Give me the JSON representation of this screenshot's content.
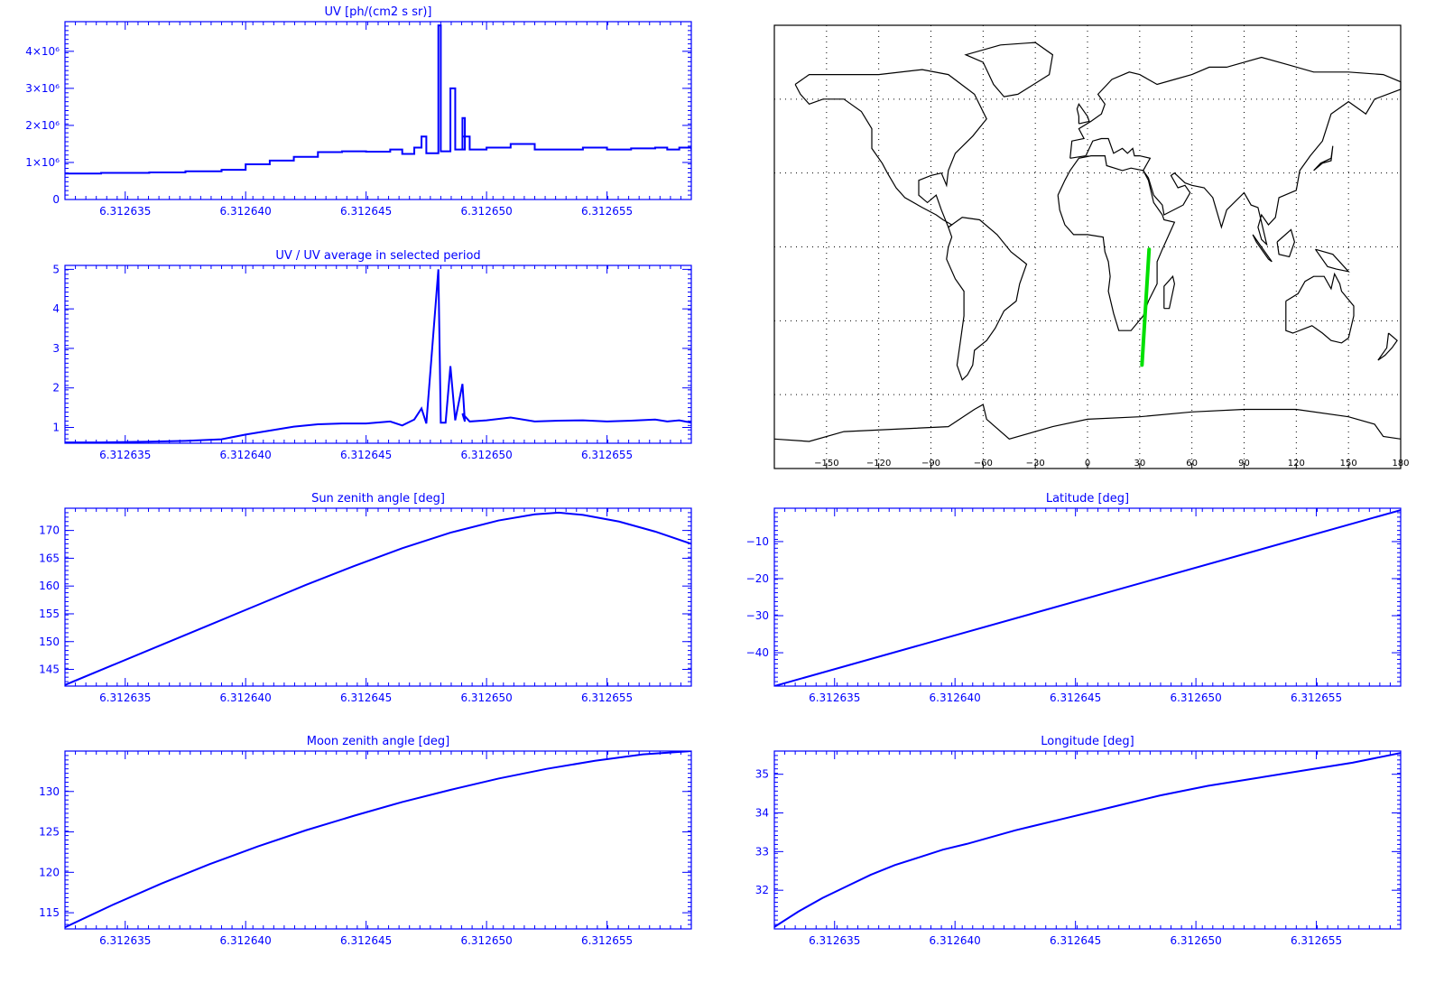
{
  "colors": {
    "axis": "#0000ff",
    "series": "#0000ff",
    "map_line": "#000000",
    "track": "#00e000",
    "grid": "#000000"
  },
  "chart_data": [
    {
      "id": "uv",
      "type": "line",
      "step": true,
      "title": "UV [ph/(cm2 s sr)]",
      "xlim": [
        6.3126325,
        6.3126585
      ],
      "ylim": [
        0,
        4800000
      ],
      "xticks": [
        6.312635,
        6.31264,
        6.312645,
        6.31265,
        6.312655
      ],
      "xtick_labels": [
        "6.312635",
        "6.312640",
        "6.312645",
        "6.312650",
        "6.312655"
      ],
      "yticks": [
        0,
        1000000,
        2000000,
        3000000,
        4000000
      ],
      "ytick_labels": [
        "0",
        "1×10⁶",
        "2×10⁶",
        "3×10⁶",
        "4×10⁶"
      ],
      "x": [
        6.3126325,
        6.312634,
        6.312636,
        6.3126375,
        6.312639,
        6.31264,
        6.312641,
        6.312642,
        6.312643,
        6.312644,
        6.312645,
        6.312646,
        6.3126465,
        6.312647,
        6.3126473,
        6.3126475,
        6.312648,
        6.3126481,
        6.3126483,
        6.3126485,
        6.3126487,
        6.312649,
        6.3126491,
        6.312649,
        6.3126493,
        6.31265,
        6.312651,
        6.312652,
        6.312653,
        6.312654,
        6.312655,
        6.312656,
        6.312657,
        6.3126575,
        6.312658,
        6.3126585
      ],
      "y": [
        700000,
        720000,
        730000,
        760000,
        800000,
        950000,
        1050000,
        1150000,
        1280000,
        1300000,
        1290000,
        1350000,
        1230000,
        1400000,
        1700000,
        1250000,
        4700000,
        1300000,
        1300000,
        3000000,
        1350000,
        2200000,
        1350000,
        1700000,
        1350000,
        1400000,
        1500000,
        1350000,
        1350000,
        1400000,
        1350000,
        1380000,
        1400000,
        1350000,
        1400000,
        1350000
      ]
    },
    {
      "id": "ratio",
      "type": "line",
      "title": "UV / UV average in selected period",
      "xlim": [
        6.3126325,
        6.3126585
      ],
      "ylim": [
        0.6,
        5.1
      ],
      "xticks": [
        6.312635,
        6.31264,
        6.312645,
        6.31265,
        6.312655
      ],
      "xtick_labels": [
        "6.312635",
        "6.312640",
        "6.312645",
        "6.312650",
        "6.312655"
      ],
      "yticks": [
        1,
        2,
        3,
        4,
        5
      ],
      "ytick_labels": [
        "1",
        "2",
        "3",
        "4",
        "5"
      ],
      "x": [
        6.3126325,
        6.312634,
        6.312636,
        6.3126375,
        6.312639,
        6.31264,
        6.312641,
        6.312642,
        6.312643,
        6.312644,
        6.312645,
        6.312646,
        6.3126465,
        6.312647,
        6.3126473,
        6.3126475,
        6.312648,
        6.3126481,
        6.3126483,
        6.3126485,
        6.3126487,
        6.312649,
        6.3126491,
        6.312649,
        6.3126493,
        6.31265,
        6.312651,
        6.312652,
        6.312653,
        6.312654,
        6.312655,
        6.312656,
        6.312657,
        6.3126575,
        6.312658,
        6.3126585
      ],
      "y": [
        0.62,
        0.62,
        0.64,
        0.66,
        0.7,
        0.82,
        0.92,
        1.02,
        1.08,
        1.1,
        1.1,
        1.15,
        1.05,
        1.2,
        1.48,
        1.1,
        5.0,
        1.12,
        1.12,
        2.55,
        1.18,
        2.1,
        1.15,
        1.35,
        1.15,
        1.18,
        1.25,
        1.15,
        1.17,
        1.18,
        1.15,
        1.17,
        1.2,
        1.15,
        1.18,
        1.12
      ]
    },
    {
      "id": "sun",
      "type": "line",
      "title": "Sun zenith angle [deg]",
      "xlim": [
        6.3126325,
        6.3126585
      ],
      "ylim": [
        142,
        174
      ],
      "xticks": [
        6.312635,
        6.31264,
        6.312645,
        6.31265,
        6.312655
      ],
      "xtick_labels": [
        "6.312635",
        "6.312640",
        "6.312645",
        "6.312650",
        "6.312655"
      ],
      "yticks": [
        145,
        150,
        155,
        160,
        165,
        170
      ],
      "ytick_labels": [
        "145",
        "150",
        "155",
        "160",
        "165",
        "170"
      ],
      "x": [
        6.3126325,
        6.3126345,
        6.3126365,
        6.3126385,
        6.3126405,
        6.3126425,
        6.3126445,
        6.3126465,
        6.3126485,
        6.3126505,
        6.312652,
        6.312653,
        6.312654,
        6.3126555,
        6.312657,
        6.3126585
      ],
      "y": [
        142.2,
        145.8,
        149.4,
        153.0,
        156.6,
        160.2,
        163.6,
        166.8,
        169.6,
        171.8,
        172.9,
        173.2,
        172.8,
        171.6,
        169.8,
        167.6
      ]
    },
    {
      "id": "lat",
      "type": "line",
      "title": "Latitude [deg]",
      "xlim": [
        6.3126325,
        6.3126585
      ],
      "ylim": [
        -49,
        -1
      ],
      "xticks": [
        6.312635,
        6.31264,
        6.312645,
        6.31265,
        6.312655
      ],
      "xtick_labels": [
        "6.312635",
        "6.312640",
        "6.312645",
        "6.312650",
        "6.312655"
      ],
      "yticks": [
        -40,
        -30,
        -20,
        -10
      ],
      "ytick_labels": [
        "−40",
        "−30",
        "−20",
        "−10"
      ],
      "x": [
        6.3126325,
        6.3126585
      ],
      "y": [
        -49,
        -1.5
      ]
    },
    {
      "id": "moon",
      "type": "line",
      "title": "Moon zenith angle [deg]",
      "xlim": [
        6.3126325,
        6.3126585
      ],
      "ylim": [
        113,
        135
      ],
      "xticks": [
        6.312635,
        6.31264,
        6.312645,
        6.31265,
        6.312655
      ],
      "xtick_labels": [
        "6.312635",
        "6.312640",
        "6.312645",
        "6.312650",
        "6.312655"
      ],
      "yticks": [
        115,
        120,
        125,
        130
      ],
      "ytick_labels": [
        "115",
        "120",
        "125",
        "130"
      ],
      "x": [
        6.3126325,
        6.3126345,
        6.3126365,
        6.3126385,
        6.3126405,
        6.3126425,
        6.3126445,
        6.3126465,
        6.3126485,
        6.3126505,
        6.3126525,
        6.3126545,
        6.3126565,
        6.3126585
      ],
      "y": [
        113.2,
        116.0,
        118.6,
        121.0,
        123.2,
        125.2,
        127.0,
        128.7,
        130.2,
        131.6,
        132.8,
        133.8,
        134.6,
        135.0
      ]
    },
    {
      "id": "lon",
      "type": "line",
      "title": "Longitude [deg]",
      "xlim": [
        6.3126325,
        6.3126585
      ],
      "ylim": [
        31,
        35.6
      ],
      "xticks": [
        6.312635,
        6.31264,
        6.312645,
        6.31265,
        6.312655
      ],
      "xtick_labels": [
        "6.312635",
        "6.312640",
        "6.312645",
        "6.312650",
        "6.312655"
      ],
      "yticks": [
        32,
        33,
        34,
        35
      ],
      "ytick_labels": [
        "32",
        "33",
        "34",
        "35"
      ],
      "x": [
        6.3126325,
        6.3126335,
        6.3126345,
        6.3126355,
        6.3126365,
        6.3126375,
        6.3126385,
        6.3126395,
        6.3126405,
        6.3126425,
        6.3126445,
        6.3126465,
        6.3126485,
        6.3126505,
        6.3126525,
        6.3126545,
        6.3126565,
        6.3126585
      ],
      "y": [
        31.05,
        31.45,
        31.8,
        32.1,
        32.4,
        32.65,
        32.85,
        33.05,
        33.2,
        33.55,
        33.85,
        34.15,
        34.45,
        34.7,
        34.9,
        35.1,
        35.3,
        35.55
      ]
    }
  ],
  "map": {
    "xtick_labels": [
      "−150",
      "−120",
      "−90",
      "−60",
      "−30",
      "0",
      "30",
      "60",
      "90",
      "120",
      "150",
      "180"
    ],
    "xticks": [
      -150,
      -120,
      -90,
      -60,
      -30,
      0,
      30,
      60,
      90,
      120,
      150,
      180
    ],
    "lon_range": [
      -180,
      180
    ],
    "lat_range": [
      -90,
      90
    ],
    "track": {
      "lon": [
        31.3,
        35.4
      ],
      "lat": [
        -48,
        -1
      ]
    }
  }
}
